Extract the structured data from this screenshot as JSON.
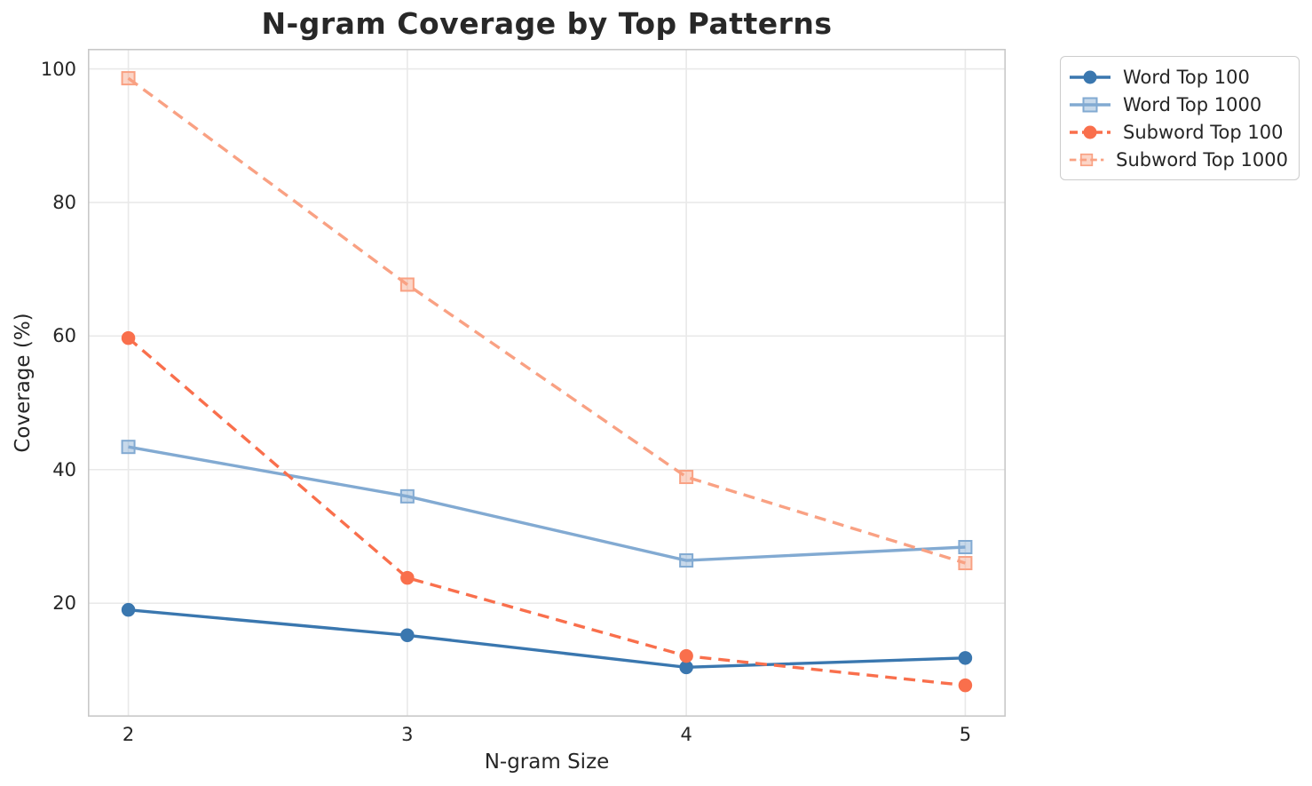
{
  "title": "N-gram Coverage by Top Patterns",
  "axes": {
    "xlabel": "N-gram Size",
    "ylabel": "Coverage (%)"
  },
  "chart_data": {
    "type": "line",
    "title": "N-gram Coverage by Top Patterns",
    "xlabel": "N-gram Size",
    "ylabel": "Coverage (%)",
    "x": [
      2,
      3,
      4,
      5
    ],
    "xticks": [
      2,
      3,
      4,
      5
    ],
    "yticks": [
      20,
      40,
      60,
      80,
      100
    ],
    "xlim": [
      1.855,
      5.145
    ],
    "ylim": [
      3,
      103
    ],
    "grid": true,
    "legend_position": "outside-top-right",
    "series": [
      {
        "name": "Word Top 100",
        "values": [
          19.0,
          15.2,
          10.4,
          11.8
        ],
        "color": "#3a77af",
        "line_style": "solid",
        "marker": "circle"
      },
      {
        "name": "Word Top 1000",
        "values": [
          43.4,
          36.0,
          26.4,
          28.4
        ],
        "color": "#82aad2",
        "line_style": "solid",
        "marker": "square"
      },
      {
        "name": "Subword Top 100",
        "values": [
          59.7,
          23.8,
          12.1,
          7.7
        ],
        "color": "#f96f4c",
        "line_style": "dashed",
        "marker": "circle"
      },
      {
        "name": "Subword Top 1000",
        "values": [
          98.6,
          67.7,
          38.9,
          26.0
        ],
        "color": "#f9a183",
        "line_style": "dashed",
        "marker": "square"
      }
    ]
  },
  "style_colors": {
    "grid_line": "#e9e9e9",
    "plot_border": "#c9c9c9",
    "text": "#262626",
    "background": "#ffffff"
  }
}
